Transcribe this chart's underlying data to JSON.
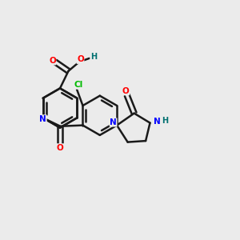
{
  "bg_color": "#ebebeb",
  "atom_colors": {
    "C": "#1a1a1a",
    "N": "#0000ff",
    "O": "#ff0000",
    "Cl": "#00bb00",
    "H": "#007070"
  },
  "bond_color": "#1a1a1a",
  "bond_width": 1.8,
  "figsize": [
    3.0,
    3.0
  ],
  "dpi": 100,
  "xlim": [
    0,
    10
  ],
  "ylim": [
    0,
    10
  ]
}
